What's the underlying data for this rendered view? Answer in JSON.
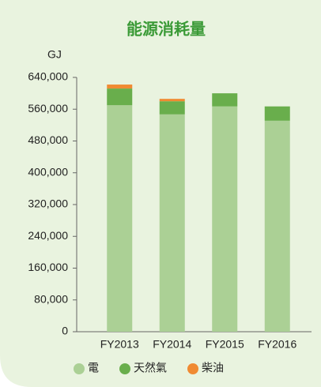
{
  "chart_data": {
    "type": "stacked_bar",
    "title": "能源消耗量",
    "y_label": "GJ",
    "categories": [
      "FY2013",
      "FY2014",
      "FY2015",
      "FY2016"
    ],
    "series": [
      {
        "name": "電",
        "color": "#abd095",
        "values": [
          570000,
          547000,
          567000,
          531000
        ]
      },
      {
        "name": "天然氣",
        "color": "#69ae4c",
        "values": [
          42000,
          33000,
          33000,
          36000
        ]
      },
      {
        "name": "柴油",
        "color": "#f08a32",
        "values": [
          10000,
          6000,
          0,
          0
        ]
      }
    ],
    "ylim": [
      0,
      640000
    ],
    "yticks": [
      0,
      {
        "value": 80000,
        "label": "80,000"
      },
      {
        "value": 160000,
        "label": "160,000"
      },
      {
        "value": 240000,
        "label": "240,000"
      },
      {
        "value": 320000,
        "label": "320,000"
      },
      {
        "value": 400000,
        "label": "400,000"
      },
      {
        "value": 480000,
        "label": "480,000"
      },
      {
        "value": 560000,
        "label": "560,000"
      },
      {
        "value": 640000,
        "label": "640,000"
      }
    ],
    "background": "#e9f3df"
  }
}
